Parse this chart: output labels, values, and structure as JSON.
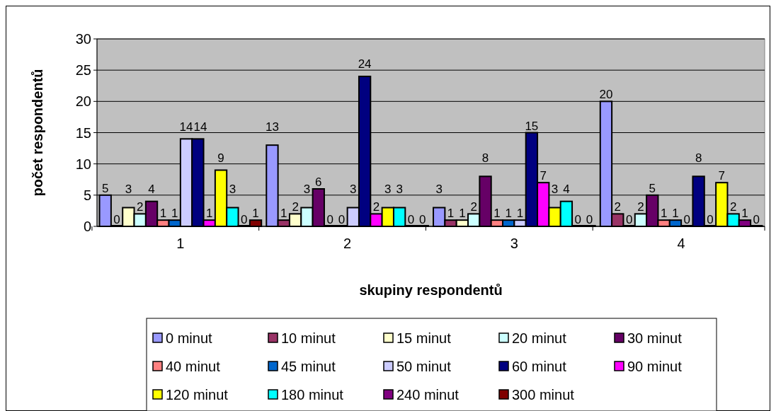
{
  "chart_data": {
    "type": "bar",
    "xlabel": "skupiny respondentů",
    "ylabel": "počet respondentů",
    "categories": [
      "1",
      "2",
      "3",
      "4"
    ],
    "ylim": [
      0,
      30
    ],
    "yticks": [
      0,
      5,
      10,
      15,
      20,
      25,
      30
    ],
    "grid": "y",
    "legend": "bottom",
    "data_labels": true,
    "series": [
      {
        "name": "0 minut",
        "color": "#9999ff",
        "values": [
          5,
          13,
          3,
          20
        ]
      },
      {
        "name": "10 minut",
        "color": "#993366",
        "values": [
          0,
          1,
          1,
          2
        ]
      },
      {
        "name": "15 minut",
        "color": "#ffffcc",
        "values": [
          3,
          2,
          1,
          0
        ]
      },
      {
        "name": "20 minut",
        "color": "#ccffff",
        "values": [
          2,
          3,
          2,
          2
        ]
      },
      {
        "name": "30 minut",
        "color": "#660066",
        "values": [
          4,
          6,
          8,
          5
        ]
      },
      {
        "name": "40 minut",
        "color": "#ff8080",
        "values": [
          1,
          0,
          1,
          1
        ]
      },
      {
        "name": "45 minut",
        "color": "#0066cc",
        "values": [
          1,
          0,
          1,
          1
        ]
      },
      {
        "name": "50 minut",
        "color": "#ccccff",
        "values": [
          14,
          3,
          1,
          0
        ]
      },
      {
        "name": "60 minut",
        "color": "#000080",
        "values": [
          14,
          24,
          15,
          8
        ]
      },
      {
        "name": "90 minut",
        "color": "#ff00ff",
        "values": [
          1,
          2,
          7,
          0
        ]
      },
      {
        "name": "120 minut",
        "color": "#ffff00",
        "values": [
          9,
          3,
          3,
          7
        ]
      },
      {
        "name": "180 minut",
        "color": "#00ffff",
        "values": [
          3,
          3,
          4,
          2
        ]
      },
      {
        "name": "240 minut",
        "color": "#800080",
        "values": [
          0,
          0,
          0,
          1
        ]
      },
      {
        "name": "300 minut",
        "color": "#800000",
        "values": [
          1,
          0,
          0,
          0
        ]
      }
    ]
  }
}
